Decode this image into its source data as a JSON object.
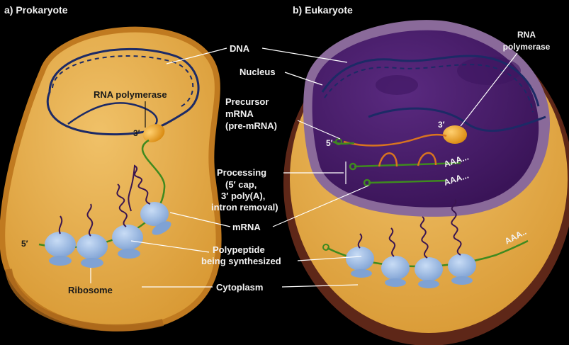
{
  "titles": {
    "prokaryote": "a) Prokaryote",
    "eukaryote": "b) Eukaryote"
  },
  "labels": {
    "dna": "DNA",
    "nucleus": "Nucleus",
    "rna_polymerase_left": "RNA polymerase",
    "rna_polymerase_right_1": "RNA",
    "rna_polymerase_right_2": "polymerase",
    "precursor_1": "Precursor",
    "precursor_2": "mRNA",
    "precursor_3": "(pre-mRNA)",
    "processing_1": "Processing",
    "processing_2": "(5′ cap,",
    "processing_3": "3′ poly(A),",
    "processing_4": "intron removal)",
    "mrna": "mRNA",
    "polypeptide_1": "Polypeptide",
    "polypeptide_2": "being synthesized",
    "ribosome": "Ribosome",
    "cytoplasm": "Cytoplasm",
    "three_prime_left": "3′",
    "five_prime_left": "5′",
    "three_prime_right": "3′",
    "five_prime_right": "5′",
    "polya_1": "AAA...",
    "polya_2": "AAA...",
    "polya_3": "AAA.."
  },
  "colors": {
    "cell_fill": "#e3a23e",
    "cell_edge": "#b8741a",
    "nucleus_fill": "#4a1f6e",
    "nucleus_rim": "#7a5a8a",
    "dna": "#1c2a66",
    "mrna": "#3f8a1f",
    "precursor": "#d9741f",
    "ribosome": "#8fb3e0",
    "polypeptide": "#3a1550",
    "polymerase": "#f0a020"
  }
}
